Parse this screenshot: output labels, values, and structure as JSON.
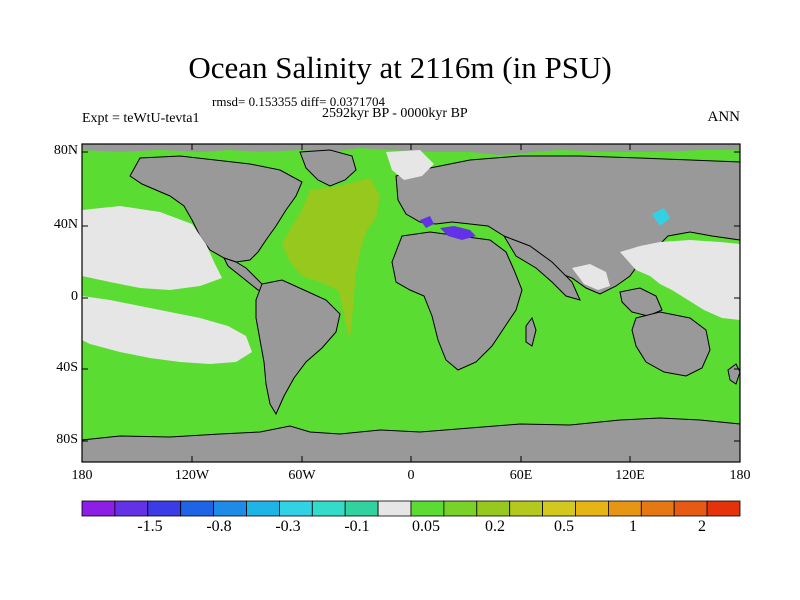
{
  "title": "Ocean Salinity at 2116m (in PSU)",
  "stats": "rmsd= 0.153355 diff= 0.0371704",
  "period": "2592kyr BP - 0000kyr BP",
  "experiment": "Expt = teWtU-tevta1",
  "season": "ANN",
  "colors": {
    "land": "#999999",
    "near_zero": "#e6e6e6",
    "positive_small": "#5adc32",
    "positive_mid": "#96c81e",
    "negative_cyan": "#32d2e6",
    "negative_purple": "#6432e6",
    "coast": "#000000"
  },
  "axes": {
    "y_ticks": [
      "80N",
      "40N",
      "0",
      "40S",
      "80S"
    ],
    "x_ticks": [
      "180",
      "120W",
      "60W",
      "0",
      "60E",
      "120E",
      "180"
    ]
  },
  "colorbar": {
    "colors": [
      "#8c1ee6",
      "#6432e6",
      "#3c3ce6",
      "#1e64e6",
      "#1e8ce6",
      "#1eb4e6",
      "#32d2e6",
      "#32dcc8",
      "#32d2a0",
      "#e6e6e6",
      "#5adc32",
      "#78d228",
      "#96c81e",
      "#b4c81e",
      "#d2c81e",
      "#e6b414",
      "#e69614",
      "#e67814",
      "#e65a14",
      "#e6320a"
    ],
    "labels": [
      "-1.5",
      "-0.8",
      "-0.3",
      "-0.1",
      "0.05",
      "0.2",
      "0.5",
      "1",
      "2"
    ]
  }
}
